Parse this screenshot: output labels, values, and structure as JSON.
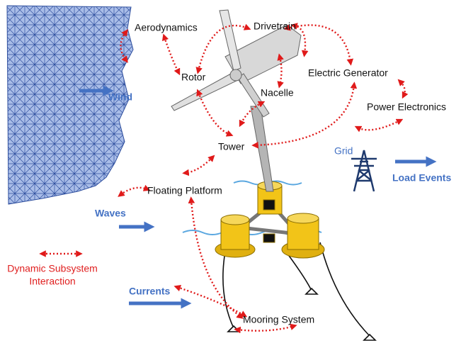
{
  "subsystems": [
    "Aerodynamics",
    "Drivetrain",
    "Rotor",
    "Electric Generator",
    "Nacelle",
    "Power Electronics",
    "Tower",
    "Floating Platform",
    "Mooring System"
  ],
  "loads": [
    "Wind",
    "Grid",
    "Load Events",
    "Waves",
    "Currents"
  ],
  "legend": {
    "label_lines": [
      "Dynamic Subsystem",
      "Interaction"
    ]
  }
}
